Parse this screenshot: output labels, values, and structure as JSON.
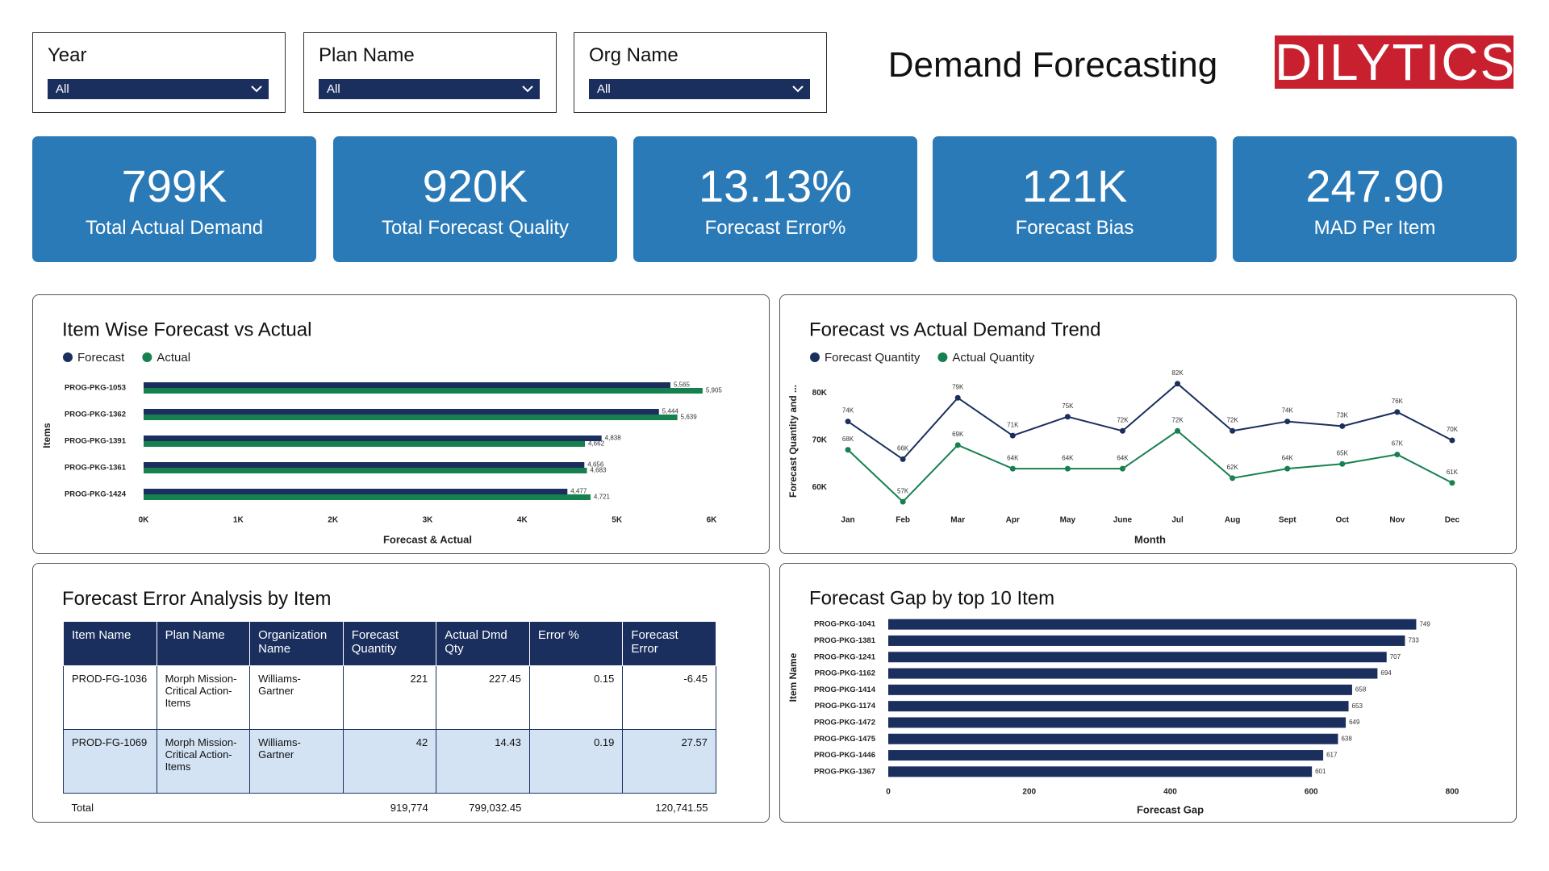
{
  "header": {
    "title": "Demand Forecasting",
    "logo": "DILYTICS"
  },
  "filters": [
    {
      "label": "Year",
      "value": "All"
    },
    {
      "label": "Plan Name",
      "value": "All"
    },
    {
      "label": "Org Name",
      "value": "All"
    }
  ],
  "kpis": [
    {
      "value": "799K",
      "label": "Total Actual Demand"
    },
    {
      "value": "920K",
      "label": "Total Forecast Quality"
    },
    {
      "value": "13.13%",
      "label": "Forecast Error%"
    },
    {
      "value": "121K",
      "label": "Forecast Bias"
    },
    {
      "value": "247.90",
      "label": "MAD Per Item"
    }
  ],
  "chart_data": [
    {
      "type": "bar",
      "orientation": "horizontal",
      "title": "Item Wise Forecast vs Actual",
      "x_label": "Forecast & Actual",
      "y_label": "Items",
      "categories": [
        "PROG-PKG-1053",
        "PROG-PKG-1362",
        "PROG-PKG-1391",
        "PROG-PKG-1361",
        "PROG-PKG-1424"
      ],
      "series": [
        {
          "name": "Forecast",
          "color": "#1b2f5e",
          "values": [
            5565,
            5444,
            4838,
            4656,
            4477
          ],
          "value_labels": [
            "5,565",
            "5,444",
            "4,838",
            "4,656",
            "4,477"
          ]
        },
        {
          "name": "Actual",
          "color": "#17804f",
          "values": [
            5905,
            5639,
            4662,
            4683,
            4721
          ],
          "value_labels": [
            "5,905",
            "5,639",
            "4,662",
            "4,683",
            "4,721"
          ]
        }
      ],
      "xlim": [
        0,
        6000
      ],
      "xticks": [
        {
          "value": 0,
          "label": "0K"
        },
        {
          "value": 1000,
          "label": "1K"
        },
        {
          "value": 2000,
          "label": "2K"
        },
        {
          "value": 3000,
          "label": "3K"
        },
        {
          "value": 4000,
          "label": "4K"
        },
        {
          "value": 5000,
          "label": "5K"
        },
        {
          "value": 6000,
          "label": "6K"
        }
      ],
      "grid": false
    },
    {
      "type": "line",
      "title": "Forecast vs Actual Demand Trend",
      "x_label": "Month",
      "y_label": "Forecast Quantity and ...",
      "categories": [
        "Jan",
        "Feb",
        "Mar",
        "Apr",
        "May",
        "June",
        "Jul",
        "Aug",
        "Sept",
        "Oct",
        "Nov",
        "Dec"
      ],
      "series": [
        {
          "name": "Forecast Quantity",
          "color": "#1b2f5e",
          "values": [
            74000,
            66000,
            79000,
            71000,
            75000,
            72000,
            82000,
            72000,
            74000,
            73000,
            76000,
            70000
          ],
          "value_labels": [
            "74K",
            "66K",
            "79K",
            "71K",
            "75K",
            "72K",
            "82K",
            "72K",
            "74K",
            "73K",
            "76K",
            "70K"
          ]
        },
        {
          "name": "Actual Quantity",
          "color": "#17804f",
          "values": [
            68000,
            57000,
            69000,
            64000,
            64000,
            64000,
            72000,
            62000,
            64000,
            65000,
            67000,
            61000
          ],
          "value_labels": [
            "68K",
            "57K",
            "69K",
            "64K",
            "64K",
            "64K",
            "72K",
            "62K",
            "64K",
            "65K",
            "67K",
            "61K"
          ]
        }
      ],
      "ylim": [
        56000,
        84000
      ],
      "yticks": [
        {
          "value": 60000,
          "label": "60K"
        },
        {
          "value": 70000,
          "label": "70K"
        },
        {
          "value": 80000,
          "label": "80K"
        }
      ],
      "grid": false
    },
    {
      "type": "bar",
      "orientation": "horizontal",
      "title": "Forecast Gap by top 10 Item",
      "x_label": "Forecast Gap",
      "y_label": "Item Name",
      "categories": [
        "PROG-PKG-1041",
        "PROG-PKG-1381",
        "PROG-PKG-1241",
        "PROG-PKG-1162",
        "PROG-PKG-1414",
        "PROG-PKG-1174",
        "PROG-PKG-1472",
        "PROG-PKG-1475",
        "PROG-PKG-1446",
        "PROG-PKG-1367"
      ],
      "values": [
        749,
        733,
        707,
        694,
        658,
        653,
        649,
        638,
        617,
        601
      ],
      "color": "#1b2f5e",
      "xlim": [
        0,
        800
      ],
      "xticks": [
        0,
        200,
        400,
        600,
        800
      ],
      "grid": false
    }
  ],
  "table": {
    "title": "Forecast Error Analysis by Item",
    "columns": [
      "Item Name",
      "Plan Name",
      "Organization Name",
      "Forecast Quantity",
      "Actual Dmd Qty",
      "Error %",
      "Forecast Error"
    ],
    "rows": [
      [
        "PROD-FG-1036",
        "Morph Mission-Critical Action-Items",
        "Williams-Gartner",
        "221",
        "227.45",
        "0.15",
        "-6.45"
      ],
      [
        "PROD-FG-1069",
        "Morph Mission-Critical Action-Items",
        "Williams-Gartner",
        "42",
        "14.43",
        "0.19",
        "27.57"
      ]
    ],
    "total": {
      "label": "Total",
      "forecast_quantity": "919,774",
      "actual_dmd_qty": "799,032.45",
      "forecast_error": "120,741.55"
    }
  }
}
